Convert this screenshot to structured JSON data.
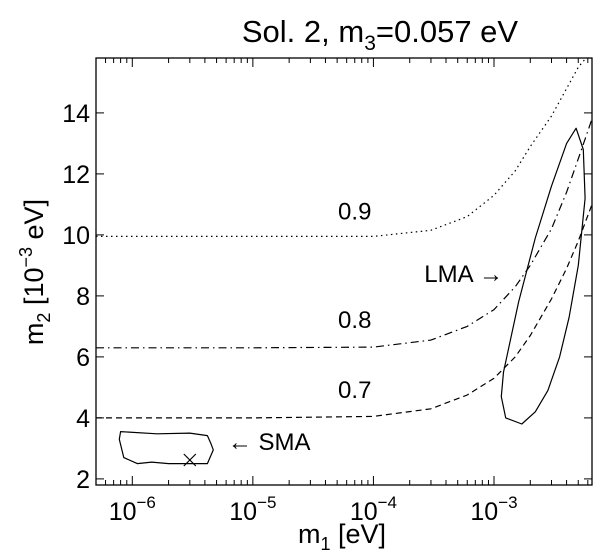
{
  "chart_data": {
    "type": "line",
    "title": {
      "main": "Sol. 2, m",
      "sub": "3",
      "rest": "=0.057 eV"
    },
    "xlabel": {
      "main": "m",
      "sub": "1",
      "rest": " [eV]"
    },
    "ylabel": {
      "main": "m",
      "sub": "2",
      "mid": " [10",
      "sup": "−3",
      "rest": " eV]"
    },
    "x_scale": "log",
    "xlim": [
      5e-07,
      0.0065
    ],
    "ylim": [
      1.8,
      15.8
    ],
    "x_ticks": [
      {
        "value": 1e-06,
        "base": "10",
        "exp": "−6"
      },
      {
        "value": 1e-05,
        "base": "10",
        "exp": "−5"
      },
      {
        "value": 0.0001,
        "base": "10",
        "exp": "−4"
      },
      {
        "value": 0.001,
        "base": "10",
        "exp": "−3"
      }
    ],
    "y_ticks": [
      2,
      4,
      6,
      8,
      10,
      12,
      14
    ],
    "grid": false,
    "series": [
      {
        "label": "0.9",
        "style": "dotted",
        "label_x": 7e-05,
        "label_y": 10.5,
        "x": [
          5e-07,
          1e-06,
          1e-05,
          0.0001,
          0.0003,
          0.0006,
          0.001,
          0.0015,
          0.002,
          0.003,
          0.004,
          0.005,
          0.0058
        ],
        "y": [
          9.95,
          9.95,
          9.95,
          9.95,
          10.15,
          10.6,
          11.3,
          12.1,
          12.9,
          13.9,
          14.8,
          15.5,
          15.8
        ]
      },
      {
        "label": "0.8",
        "style": "dashdot",
        "label_x": 7e-05,
        "label_y": 6.95,
        "x": [
          5e-07,
          1e-06,
          1e-05,
          0.0001,
          0.0003,
          0.0006,
          0.001,
          0.0015,
          0.002,
          0.003,
          0.004,
          0.005,
          0.0065
        ],
        "y": [
          6.3,
          6.3,
          6.3,
          6.32,
          6.55,
          7.0,
          7.55,
          8.3,
          9.0,
          10.2,
          11.4,
          12.5,
          13.8
        ]
      },
      {
        "label": "0.7",
        "style": "dashed",
        "label_x": 7e-05,
        "label_y": 4.65,
        "x": [
          5e-07,
          1e-06,
          1e-05,
          0.0001,
          0.0003,
          0.0006,
          0.001,
          0.0015,
          0.002,
          0.003,
          0.004,
          0.005,
          0.0065
        ],
        "y": [
          4.0,
          4.0,
          4.0,
          4.05,
          4.3,
          4.75,
          5.3,
          6.0,
          6.7,
          7.9,
          8.9,
          9.8,
          11.0
        ]
      }
    ],
    "regions": [
      {
        "label": "LMA",
        "arrow": "→",
        "label_x": 0.00056,
        "label_y": 8.45,
        "x": [
          0.0012,
          0.0016,
          0.0022,
          0.003,
          0.004,
          0.0048,
          0.0055,
          0.0057,
          0.005,
          0.0042,
          0.0035,
          0.0028,
          0.0022,
          0.0017,
          0.00125,
          0.00115,
          0.0012
        ],
        "y": [
          5.5,
          7.8,
          9.9,
          11.6,
          13.0,
          13.5,
          12.8,
          11.2,
          9.0,
          7.3,
          6.0,
          4.9,
          4.2,
          3.8,
          4.0,
          4.7,
          5.5
        ]
      },
      {
        "label": "SMA",
        "arrow": "←",
        "label_x": 6.2e-06,
        "label_y": 2.95,
        "x": [
          7.8e-07,
          8e-07,
          1.6e-06,
          3e-06,
          4.2e-06,
          4.5e-06,
          4.7e-06,
          4.2e-06,
          2.9e-06,
          2e-06,
          1.45e-06,
          1.1e-06,
          8.5e-07,
          7.8e-07
        ],
        "y": [
          3.3,
          3.55,
          3.48,
          3.5,
          3.42,
          3.15,
          2.95,
          2.5,
          2.5,
          2.5,
          2.55,
          2.5,
          2.7,
          3.3
        ]
      }
    ],
    "markers": [
      {
        "symbol": "x",
        "x": 3e-06,
        "y": 2.62
      }
    ]
  }
}
